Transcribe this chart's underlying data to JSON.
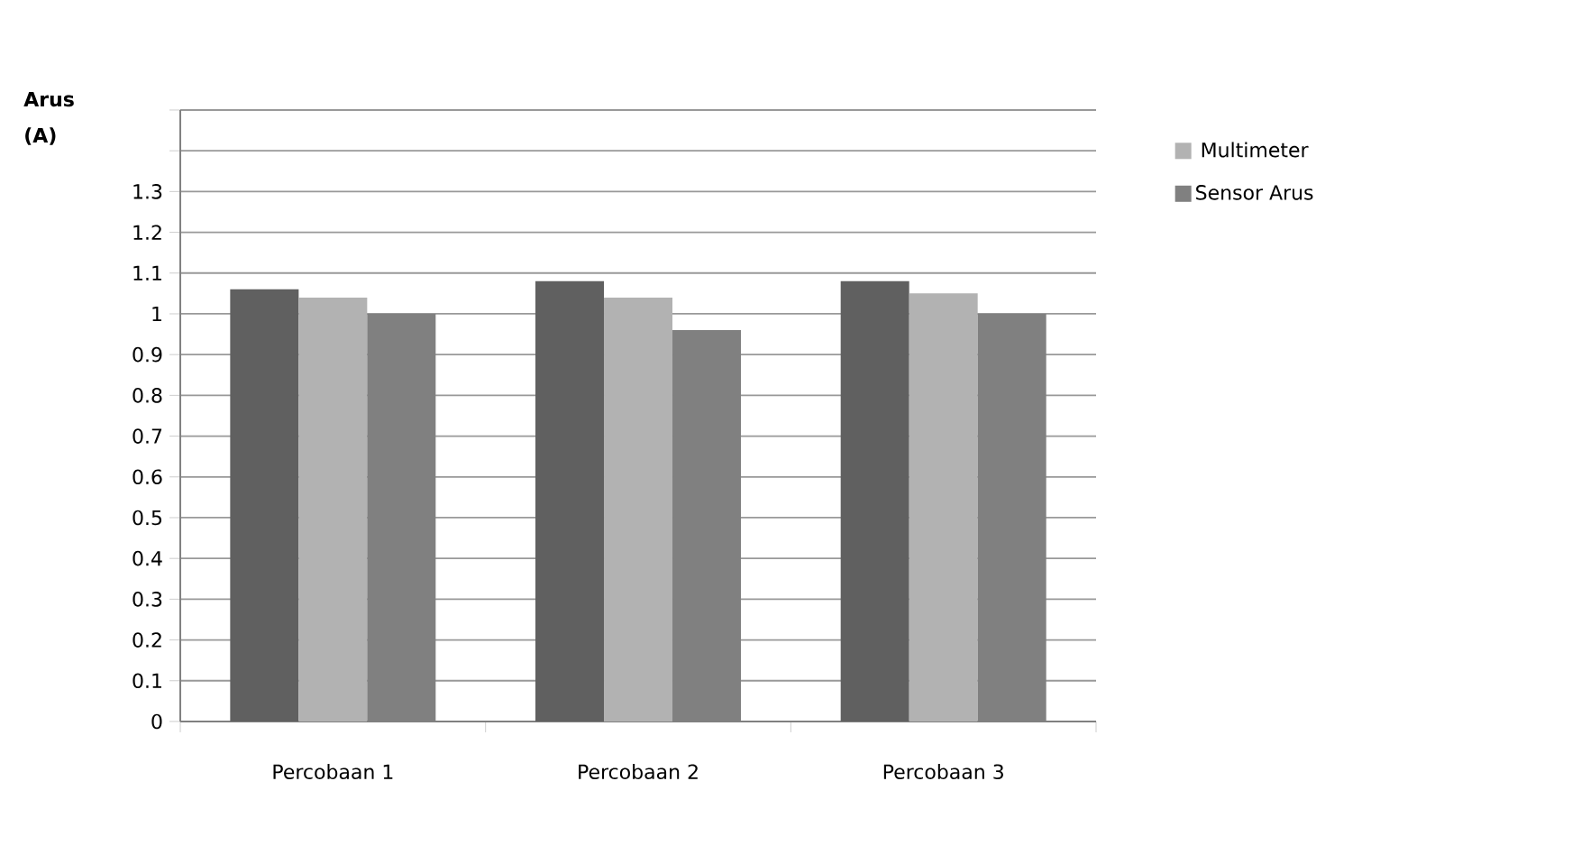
{
  "chart_data": {
    "type": "bar",
    "ylabel": "Arus (A)",
    "categories": [
      "Percobaan 1",
      "Percobaan 2",
      "Percobaan 3"
    ],
    "series": [
      {
        "color": "#606060",
        "values": [
          1.06,
          1.08,
          1.08
        ]
      },
      {
        "name": "Multimeter",
        "color": "#b2b2b2",
        "values": [
          1.04,
          1.04,
          1.05
        ]
      },
      {
        "name": "Sensor Arus",
        "color": "#808080",
        "values": [
          1.0,
          0.96,
          1.0
        ]
      }
    ],
    "ylim": [
      0,
      1.5
    ],
    "yticks": [
      0,
      0.1,
      0.2,
      0.3,
      0.4,
      0.5,
      0.6,
      0.7,
      0.8,
      0.9,
      1,
      1.1,
      1.2,
      1.3,
      {
        "value": 1.4,
        "label": null
      },
      {
        "value": 1.5,
        "label": null
      }
    ],
    "grid": "y",
    "legend": "top right"
  }
}
